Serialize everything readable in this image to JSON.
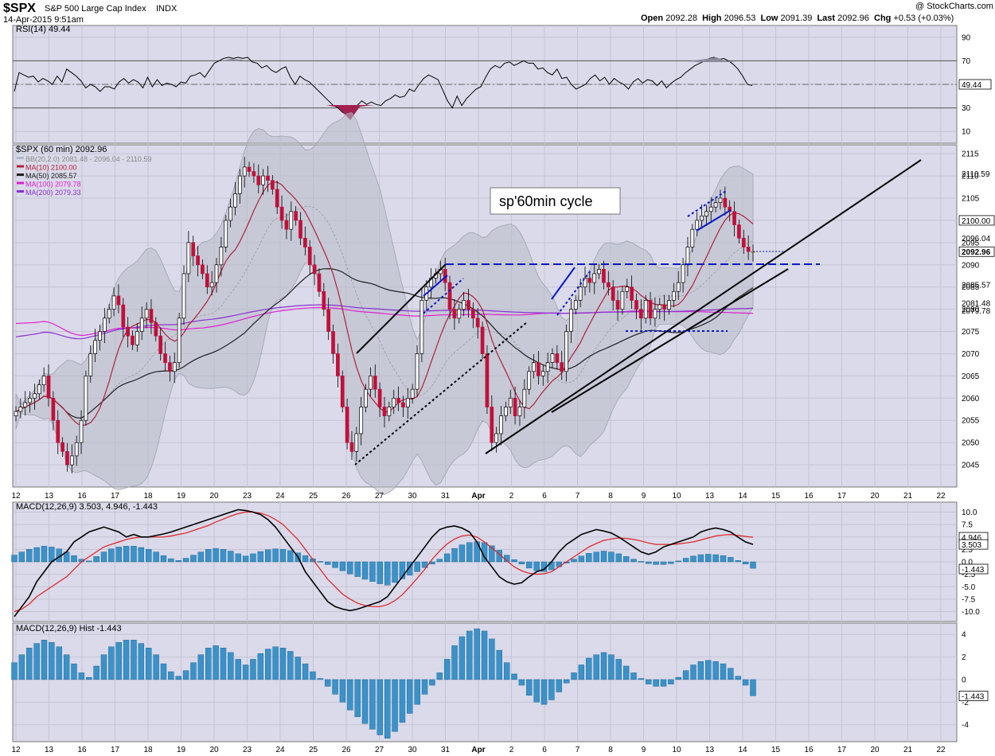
{
  "header": {
    "symbol": "$SPX",
    "name": "S&P 500 Large Cap Index",
    "exchange": "INDX",
    "datetime": "14-Apr-2015 9:51am",
    "watermark": "@ StockCharts.com",
    "open_label": "Open",
    "open": "2092.28",
    "high_label": "High",
    "high": "2096.53",
    "low_label": "Low",
    "low": "2091.39",
    "last_label": "Last",
    "last": "2092.96",
    "chg_label": "Chg",
    "chg": "+0.53 (+0.03%)"
  },
  "chart_data": [
    {
      "type": "line",
      "panel": "rsi",
      "title": "RSI(14) 49.44",
      "ylim": [
        0,
        100
      ],
      "yticks": [
        10,
        30,
        50,
        70,
        90
      ],
      "reference_lines": [
        30,
        70
      ],
      "last_value_label": "49.44",
      "series": [
        {
          "values": [
            44,
            60,
            58,
            56,
            57,
            52,
            55,
            53,
            50,
            57,
            52,
            63,
            60,
            57,
            53,
            47,
            50,
            48,
            44,
            48,
            48,
            46,
            52,
            55,
            51,
            54,
            52,
            47,
            56,
            48,
            54,
            49,
            51,
            50,
            48,
            52,
            51,
            57,
            58,
            60,
            56,
            62,
            68,
            70,
            72,
            73,
            72,
            73,
            72,
            73,
            69,
            68,
            64,
            66,
            62,
            60,
            63,
            65,
            56,
            50,
            57,
            54,
            52,
            48,
            44,
            40,
            36,
            32,
            30,
            26,
            24,
            28,
            32,
            36,
            33,
            35,
            33,
            32,
            36,
            38,
            41,
            39,
            40,
            46,
            44,
            50,
            55,
            58,
            56,
            54,
            45,
            36,
            30,
            40,
            32,
            38,
            42,
            46,
            48,
            56,
            63,
            66,
            64,
            68,
            69,
            66,
            68,
            70,
            68,
            68,
            63,
            64,
            60,
            58,
            63,
            55,
            56,
            50,
            46,
            48,
            50,
            55,
            58,
            53,
            56,
            50,
            55,
            52,
            50,
            46,
            52,
            55,
            51,
            54,
            53,
            49,
            53,
            47,
            51,
            54,
            56,
            60,
            63,
            66,
            68,
            70,
            72,
            73,
            71,
            72,
            70,
            67,
            63,
            57,
            50,
            49
          ]
        }
      ]
    },
    {
      "type": "bar",
      "subtype": "candlestick",
      "panel": "price",
      "title": "$SPX (60 min) 2092.96",
      "ylim": [
        2040,
        2117
      ],
      "yticks": [
        2045,
        2050,
        2055,
        2060,
        2065,
        2070,
        2075,
        2080,
        2085,
        2090,
        2095,
        2100,
        2105,
        2110,
        2115
      ],
      "x_tick_labels": [
        "12",
        "13",
        "16",
        "17",
        "18",
        "19",
        "20",
        "23",
        "24",
        "25",
        "26",
        "27",
        "30",
        "31",
        "Apr",
        "2",
        "6",
        "7",
        "8",
        "9",
        "10",
        "13",
        "14",
        "15",
        "16",
        "17",
        "20",
        "21",
        "22"
      ],
      "legend": [
        {
          "label": "BB(20,2.0) 2081.48 - 2096.04 - 2110.59",
          "color": "#b0b8c8"
        },
        {
          "label": "MA(10) 2100.00",
          "color": "#b0203a"
        },
        {
          "label": "MA(50) 2085.57",
          "color": "#202020"
        },
        {
          "label": "MA(100) 2079.78",
          "color": "#e020d0"
        },
        {
          "label": "MA(200) 2079.33",
          "color": "#8a30d0"
        }
      ],
      "annotation": "sp'60min cycle",
      "right_labels": [
        {
          "value": 2110.59,
          "label": "2110.59",
          "style": "plain"
        },
        {
          "value": 2100.0,
          "label": "2100.00",
          "style": "box"
        },
        {
          "value": 2096.04,
          "label": "2096.04",
          "style": "plain"
        },
        {
          "value": 2092.96,
          "label": "2092.96",
          "style": "bold"
        },
        {
          "value": 2085.57,
          "label": "2085.57",
          "style": "plain"
        },
        {
          "value": 2081.48,
          "label": "2081.48",
          "style": "plain"
        },
        {
          "value": 2079.78,
          "label": "2079.78",
          "style": "plain"
        }
      ],
      "closes": [
        2057,
        2058,
        2059,
        2060,
        2061,
        2063,
        2065,
        2060,
        2055,
        2050,
        2048,
        2045,
        2047,
        2050,
        2055,
        2065,
        2070,
        2073,
        2075,
        2078,
        2080,
        2083,
        2081,
        2076,
        2074,
        2072,
        2075,
        2078,
        2080,
        2077,
        2074,
        2070,
        2068,
        2066,
        2068,
        2078,
        2088,
        2095,
        2092,
        2090,
        2088,
        2085,
        2086,
        2090,
        2094,
        2100,
        2103,
        2106,
        2110,
        2112,
        2111,
        2110,
        2108,
        2110,
        2109,
        2107,
        2103,
        2100,
        2098,
        2102,
        2100,
        2096,
        2094,
        2090,
        2088,
        2084,
        2080,
        2075,
        2070,
        2065,
        2058,
        2050,
        2048,
        2052,
        2058,
        2062,
        2065,
        2062,
        2058,
        2056,
        2058,
        2060,
        2059,
        2058,
        2060,
        2062,
        2070,
        2082,
        2085,
        2087,
        2088,
        2089,
        2086,
        2080,
        2078,
        2080,
        2082,
        2080,
        2078,
        2076,
        2070,
        2058,
        2050,
        2052,
        2056,
        2058,
        2060,
        2056,
        2058,
        2062,
        2066,
        2068,
        2065,
        2066,
        2068,
        2070,
        2068,
        2066,
        2075,
        2080,
        2082,
        2085,
        2087,
        2086,
        2088,
        2089,
        2086,
        2085,
        2082,
        2080,
        2084,
        2085,
        2082,
        2080,
        2078,
        2082,
        2078,
        2080,
        2081,
        2080,
        2082,
        2084,
        2086,
        2090,
        2094,
        2098,
        2100,
        2101,
        2102,
        2103,
        2104,
        2105,
        2103,
        2102,
        2099,
        2096,
        2094,
        2093,
        2093
      ]
    },
    {
      "type": "line",
      "panel": "macd",
      "title": "MACD(12,26,9) 3.503, 4.946, -1.443",
      "ylim": [
        -12,
        12
      ],
      "yticks": [
        10,
        7.5,
        5,
        2.5,
        0,
        -2.5,
        -5,
        -7.5,
        -10
      ],
      "right_labels": [
        {
          "value": 4.946,
          "label": "4.946"
        },
        {
          "value": 3.503,
          "label": "3.503"
        },
        {
          "value": -1.443,
          "label": "-1.443"
        }
      ],
      "series": [
        {
          "name": "MACD",
          "values": [
            -11,
            -9,
            -7,
            -4,
            -2,
            0,
            1,
            2,
            4,
            5,
            6,
            6.5,
            7,
            6.5,
            6,
            5,
            5.5,
            5,
            5,
            5.3,
            5.6,
            6,
            6.5,
            7,
            7.5,
            8,
            8.5,
            9,
            9.5,
            10,
            10.5,
            10.3,
            10,
            9.5,
            8.5,
            7,
            5,
            3,
            1,
            -2,
            -4,
            -6,
            -8,
            -9,
            -9.5,
            -9.8,
            -9.5,
            -9,
            -8.5,
            -8,
            -7,
            -5,
            -3,
            -1,
            1,
            3,
            5,
            6.5,
            7,
            7.2,
            6.8,
            6,
            4,
            1,
            -1,
            -3,
            -4,
            -4.5,
            -4.2,
            -3,
            -2,
            -1.5,
            0,
            2,
            3.5,
            4.5,
            5.5,
            6,
            6.5,
            6.2,
            5.8,
            5,
            4,
            3,
            2,
            1.5,
            2,
            3,
            3.5,
            4,
            4.5,
            5,
            6,
            6.5,
            6.8,
            6.5,
            6,
            4.946,
            4,
            3.503
          ]
        },
        {
          "name": "Signal",
          "values": [
            -10,
            -9.5,
            -8.5,
            -7,
            -6,
            -5,
            -4,
            -3,
            -1.5,
            0,
            1,
            2,
            3,
            3.5,
            4,
            4.5,
            4.8,
            5,
            5,
            5,
            5,
            5.2,
            5.5,
            5.8,
            6.3,
            6.8,
            7.3,
            8,
            8.6,
            9.2,
            9.7,
            10,
            10,
            9.8,
            9.3,
            8.5,
            7.5,
            6,
            4.5,
            2.5,
            0.5,
            -1.5,
            -3.5,
            -5,
            -6.5,
            -7.5,
            -8.3,
            -8.8,
            -9,
            -9,
            -8.6,
            -7.8,
            -6.6,
            -5,
            -3.3,
            -1.5,
            0.5,
            2.2,
            3.6,
            4.6,
            5.2,
            5.4,
            5,
            4,
            2.8,
            1.5,
            0.2,
            -1,
            -1.8,
            -2.3,
            -2.5,
            -2.4,
            -2,
            -1,
            0,
            1,
            2,
            3,
            3.7,
            4.3,
            4.6,
            4.8,
            4.7,
            4.5,
            4.2,
            3.8,
            3.5,
            3.5,
            3.5,
            3.6,
            3.8,
            4,
            4.4,
            4.8,
            5.2,
            5.4,
            5.5,
            5.3,
            5.1,
            4.946
          ]
        }
      ]
    },
    {
      "type": "bar",
      "panel": "macd_hist",
      "title": "MACD(12,26,9) Hist -1.443",
      "ylim": [
        -5.5,
        5
      ],
      "yticks": [
        4,
        2,
        0,
        -2,
        -4
      ],
      "x_tick_labels": [
        "12",
        "13",
        "16",
        "17",
        "18",
        "19",
        "20",
        "23",
        "24",
        "25",
        "26",
        "27",
        "30",
        "31",
        "Apr",
        "2",
        "6",
        "7",
        "8",
        "9",
        "10",
        "13",
        "14",
        "15",
        "16",
        "17",
        "20",
        "21",
        "22"
      ],
      "last_value_label": "-1.443",
      "values": [
        1.5,
        2.2,
        2.8,
        3.2,
        3.5,
        3.3,
        2.9,
        2.2,
        1.4,
        0.6,
        0.2,
        1.2,
        2.2,
        2.9,
        3.3,
        3.5,
        3.5,
        3.2,
        2.8,
        2.2,
        1.4,
        0.7,
        0.3,
        0.8,
        1.5,
        2.2,
        2.8,
        3.0,
        2.8,
        2.4,
        1.8,
        1.3,
        1.8,
        2.3,
        2.7,
        2.9,
        2.8,
        2.5,
        2.0,
        1.4,
        0.7,
        0.1,
        -0.6,
        -1.3,
        -2.0,
        -2.7,
        -3.3,
        -3.9,
        -4.4,
        -4.9,
        -5.2,
        -4.6,
        -3.8,
        -3.0,
        -2.2,
        -1.3,
        -0.5,
        0.6,
        1.8,
        3.0,
        3.8,
        4.3,
        4.5,
        4.3,
        3.6,
        2.6,
        1.5,
        0.5,
        -0.5,
        -1.4,
        -2.0,
        -2.2,
        -1.8,
        -1.1,
        -0.3,
        0.6,
        1.3,
        1.9,
        2.2,
        2.4,
        2.2,
        1.8,
        1.2,
        0.6,
        0.1,
        -0.4,
        -0.6,
        -0.6,
        -0.4,
        0.2,
        0.8,
        1.3,
        1.6,
        1.7,
        1.6,
        1.4,
        1.0,
        0.3,
        -0.5,
        -1.443
      ]
    }
  ]
}
